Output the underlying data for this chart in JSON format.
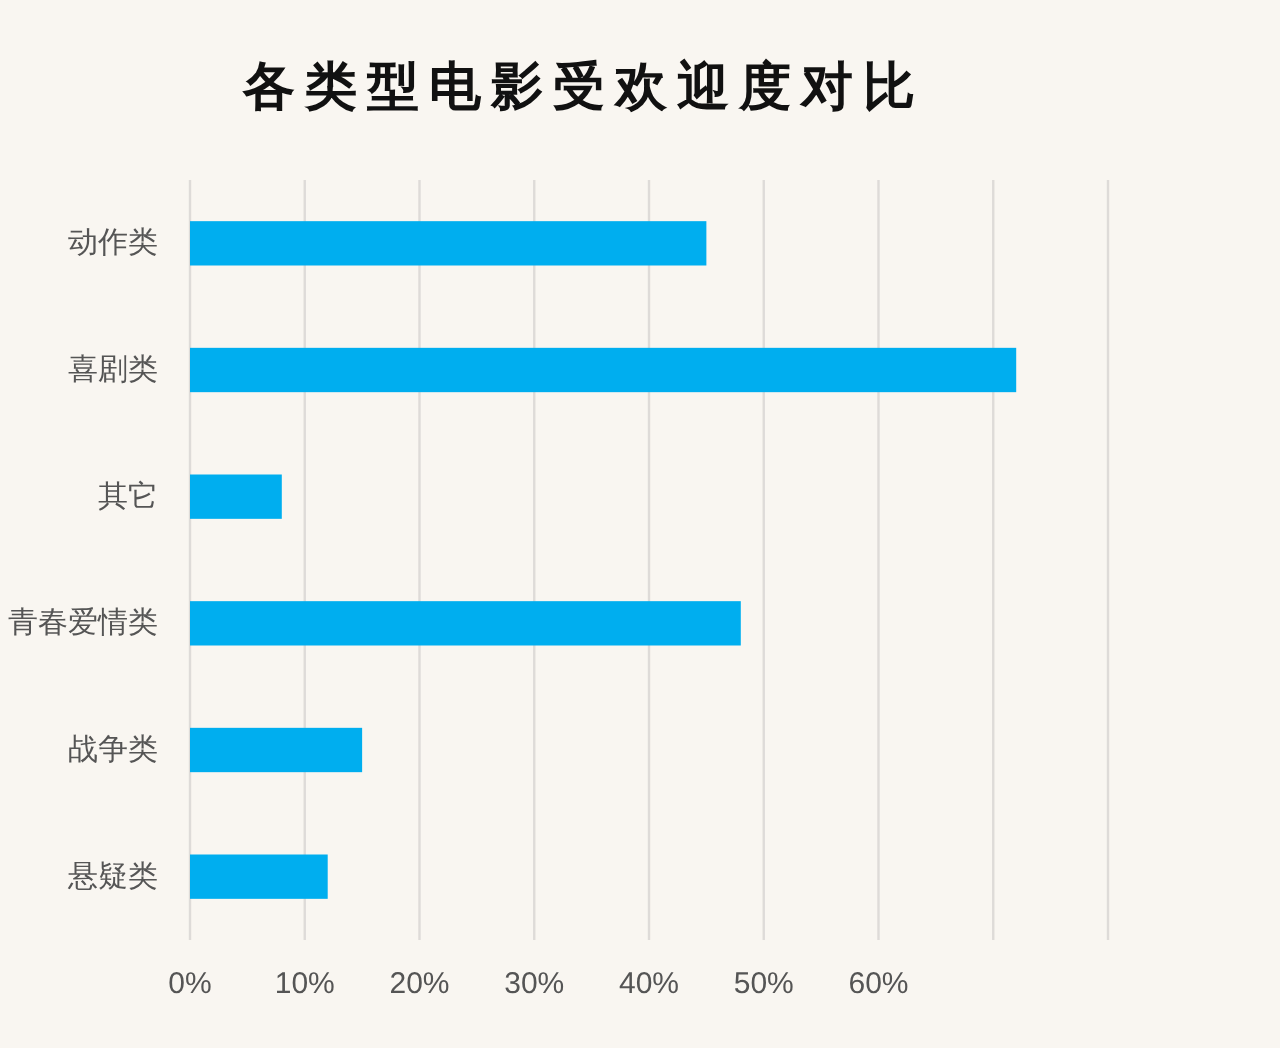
{
  "chart_data": {
    "type": "bar",
    "orientation": "horizontal",
    "title": "各类型电影受欢迎度对比",
    "categories": [
      "动作类",
      "喜剧类",
      "其它",
      "青春爱情类",
      "战争类",
      "悬疑类"
    ],
    "values": [
      45,
      72,
      8,
      48,
      15,
      12
    ],
    "color": "#00aeef",
    "xlim": [
      0,
      80
    ],
    "xticks": [
      {
        "value": 0,
        "label": "0%"
      },
      {
        "value": 10,
        "label": "10%"
      },
      {
        "value": 20,
        "label": "20%"
      },
      {
        "value": 30,
        "label": "30%"
      },
      {
        "value": 40,
        "label": "40%"
      },
      {
        "value": 50,
        "label": "50%"
      },
      {
        "value": 60,
        "label": "60%"
      },
      {
        "value": 70,
        "label": null
      },
      {
        "value": 80,
        "label": null
      }
    ],
    "grid": "x"
  }
}
